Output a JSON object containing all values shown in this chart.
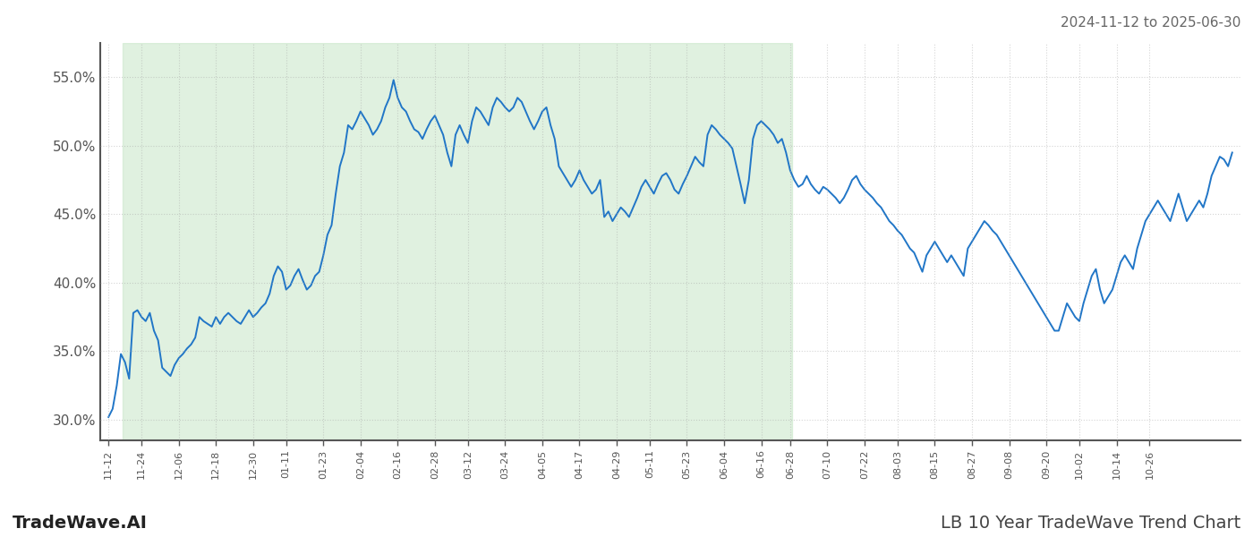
{
  "title_top_right": "2024-11-12 to 2025-06-30",
  "title_bottom_left": "TradeWave.AI",
  "title_bottom_right": "LB 10 Year TradeWave Trend Chart",
  "line_color": "#2176c7",
  "line_width": 1.4,
  "background_color": "#ffffff",
  "shade_color": "#c8e6c8",
  "shade_alpha": 0.55,
  "ylim_min": 28.5,
  "ylim_max": 57.5,
  "yticks": [
    30.0,
    35.0,
    40.0,
    45.0,
    50.0,
    55.0
  ],
  "grid_color": "#aaaaaa",
  "grid_alpha": 0.5,
  "grid_linestyle": ":",
  "n_total": 253,
  "shade_start_idx": 4,
  "shade_end_idx": 165,
  "xtick_positions": [
    0,
    8,
    17,
    26,
    35,
    43,
    52,
    61,
    70,
    79,
    87,
    96,
    105,
    114,
    123,
    131,
    140,
    149,
    158,
    165,
    174,
    183,
    191,
    200,
    209,
    218,
    227,
    235,
    244,
    252
  ],
  "xtick_labels": [
    "11-12",
    "11-24",
    "12-06",
    "12-18",
    "12-30",
    "01-11",
    "01-23",
    "02-04",
    "02-16",
    "02-28",
    "03-12",
    "03-24",
    "04-05",
    "04-17",
    "04-29",
    "05-11",
    "05-23",
    "06-04",
    "06-16",
    "06-28",
    "07-10",
    "07-22",
    "08-03",
    "08-15",
    "08-27",
    "09-08",
    "09-20",
    "10-02",
    "10-14",
    "10-26"
  ],
  "values": [
    30.2,
    30.8,
    32.5,
    34.8,
    34.2,
    33.0,
    37.8,
    38.0,
    37.5,
    37.2,
    37.8,
    36.5,
    35.8,
    33.8,
    33.5,
    33.2,
    34.0,
    34.5,
    34.8,
    35.2,
    35.5,
    36.0,
    37.5,
    37.2,
    37.0,
    36.8,
    37.5,
    37.0,
    37.5,
    37.8,
    37.5,
    37.2,
    37.0,
    37.5,
    38.0,
    37.5,
    37.8,
    38.2,
    38.5,
    39.2,
    40.5,
    41.2,
    40.8,
    39.5,
    39.8,
    40.5,
    41.0,
    40.2,
    39.5,
    39.8,
    40.5,
    40.8,
    42.0,
    43.5,
    44.2,
    46.5,
    48.5,
    49.5,
    51.5,
    51.2,
    51.8,
    52.5,
    52.0,
    51.5,
    50.8,
    51.2,
    51.8,
    52.8,
    53.5,
    54.8,
    53.5,
    52.8,
    52.5,
    51.8,
    51.2,
    51.0,
    50.5,
    51.2,
    51.8,
    52.2,
    51.5,
    50.8,
    49.5,
    48.5,
    50.8,
    51.5,
    50.8,
    50.2,
    51.8,
    52.8,
    52.5,
    52.0,
    51.5,
    52.8,
    53.5,
    53.2,
    52.8,
    52.5,
    52.8,
    53.5,
    53.2,
    52.5,
    51.8,
    51.2,
    51.8,
    52.5,
    52.8,
    51.5,
    50.5,
    48.5,
    48.0,
    47.5,
    47.0,
    47.5,
    48.2,
    47.5,
    47.0,
    46.5,
    46.8,
    47.5,
    44.8,
    45.2,
    44.5,
    45.0,
    45.5,
    45.2,
    44.8,
    45.5,
    46.2,
    47.0,
    47.5,
    47.0,
    46.5,
    47.2,
    47.8,
    48.0,
    47.5,
    46.8,
    46.5,
    47.2,
    47.8,
    48.5,
    49.2,
    48.8,
    48.5,
    50.8,
    51.5,
    51.2,
    50.8,
    50.5,
    50.2,
    49.8,
    48.5,
    47.2,
    45.8,
    47.5,
    50.5,
    51.5,
    51.8,
    51.5,
    51.2,
    50.8,
    50.2,
    50.5,
    49.5,
    48.2,
    47.5,
    47.0,
    47.2,
    47.8,
    47.2,
    46.8,
    46.5,
    47.0,
    46.8,
    46.5,
    46.2,
    45.8,
    46.2,
    46.8,
    47.5,
    47.8,
    47.2,
    46.8,
    46.5,
    46.2,
    45.8,
    45.5,
    45.0,
    44.5,
    44.2,
    43.8,
    43.5,
    43.0,
    42.5,
    42.2,
    41.5,
    40.8,
    42.0,
    42.5,
    43.0,
    42.5,
    42.0,
    41.5,
    42.0,
    41.5,
    41.0,
    40.5,
    42.5,
    43.0,
    43.5,
    44.0,
    44.5,
    44.2,
    43.8,
    43.5,
    43.0,
    42.5,
    42.0,
    41.5,
    41.0,
    40.5,
    40.0,
    39.5,
    39.0,
    38.5,
    38.0,
    37.5,
    37.0,
    36.5,
    36.5,
    37.5,
    38.5,
    38.0,
    37.5,
    37.2,
    38.5,
    39.5,
    40.5,
    41.0,
    39.5,
    38.5,
    39.0,
    39.5,
    40.5,
    41.5,
    42.0,
    41.5,
    41.0,
    42.5,
    43.5,
    44.5,
    45.0,
    45.5,
    46.0,
    45.5,
    45.0,
    44.5,
    45.5,
    46.5,
    45.5,
    44.5,
    45.0,
    45.5,
    46.0,
    45.5,
    46.5,
    47.8,
    48.5,
    49.2,
    49.0,
    48.5,
    49.5
  ]
}
